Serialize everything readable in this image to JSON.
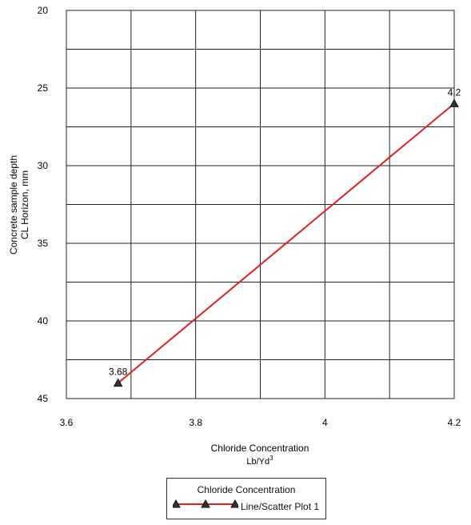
{
  "chart_data": {
    "type": "line",
    "xlabel": "Chloride Concentration",
    "xlabel_unit": "Lb/Yd",
    "xlabel_unit_sup": "3",
    "ylabel": "Concrete sample depth",
    "ylabel2": "CL Horizon, mm",
    "xlim": [
      3.6,
      4.2
    ],
    "ylim": [
      20,
      45
    ],
    "y_inverted": true,
    "grid": true,
    "x_ticks": [
      3.6,
      3.8,
      4,
      4.2
    ],
    "x_tick_labels": [
      "3.6",
      "3.8",
      "4",
      "4.2"
    ],
    "x_gridlines": [
      3.6,
      3.7,
      3.8,
      3.9,
      4.0,
      4.1,
      4.2
    ],
    "y_ticks": [
      20,
      25,
      30,
      35,
      40,
      45
    ],
    "y_tick_labels": [
      "20",
      "25",
      "30",
      "35",
      "40",
      "45"
    ],
    "y_gridlines": [
      20,
      22.5,
      25,
      27.5,
      30,
      32.5,
      35,
      37.5,
      40,
      42.5,
      45
    ],
    "series": [
      {
        "name": "Line/Scatter Plot 1",
        "color": "#e02020",
        "marker": "triangle",
        "points": [
          {
            "x": 3.68,
            "y": 44,
            "label": "3.68"
          },
          {
            "x": 4.2,
            "y": 26,
            "label": "4.2"
          }
        ]
      }
    ],
    "legend": {
      "title": "Chloride Concentration",
      "position": "bottom-center"
    }
  }
}
